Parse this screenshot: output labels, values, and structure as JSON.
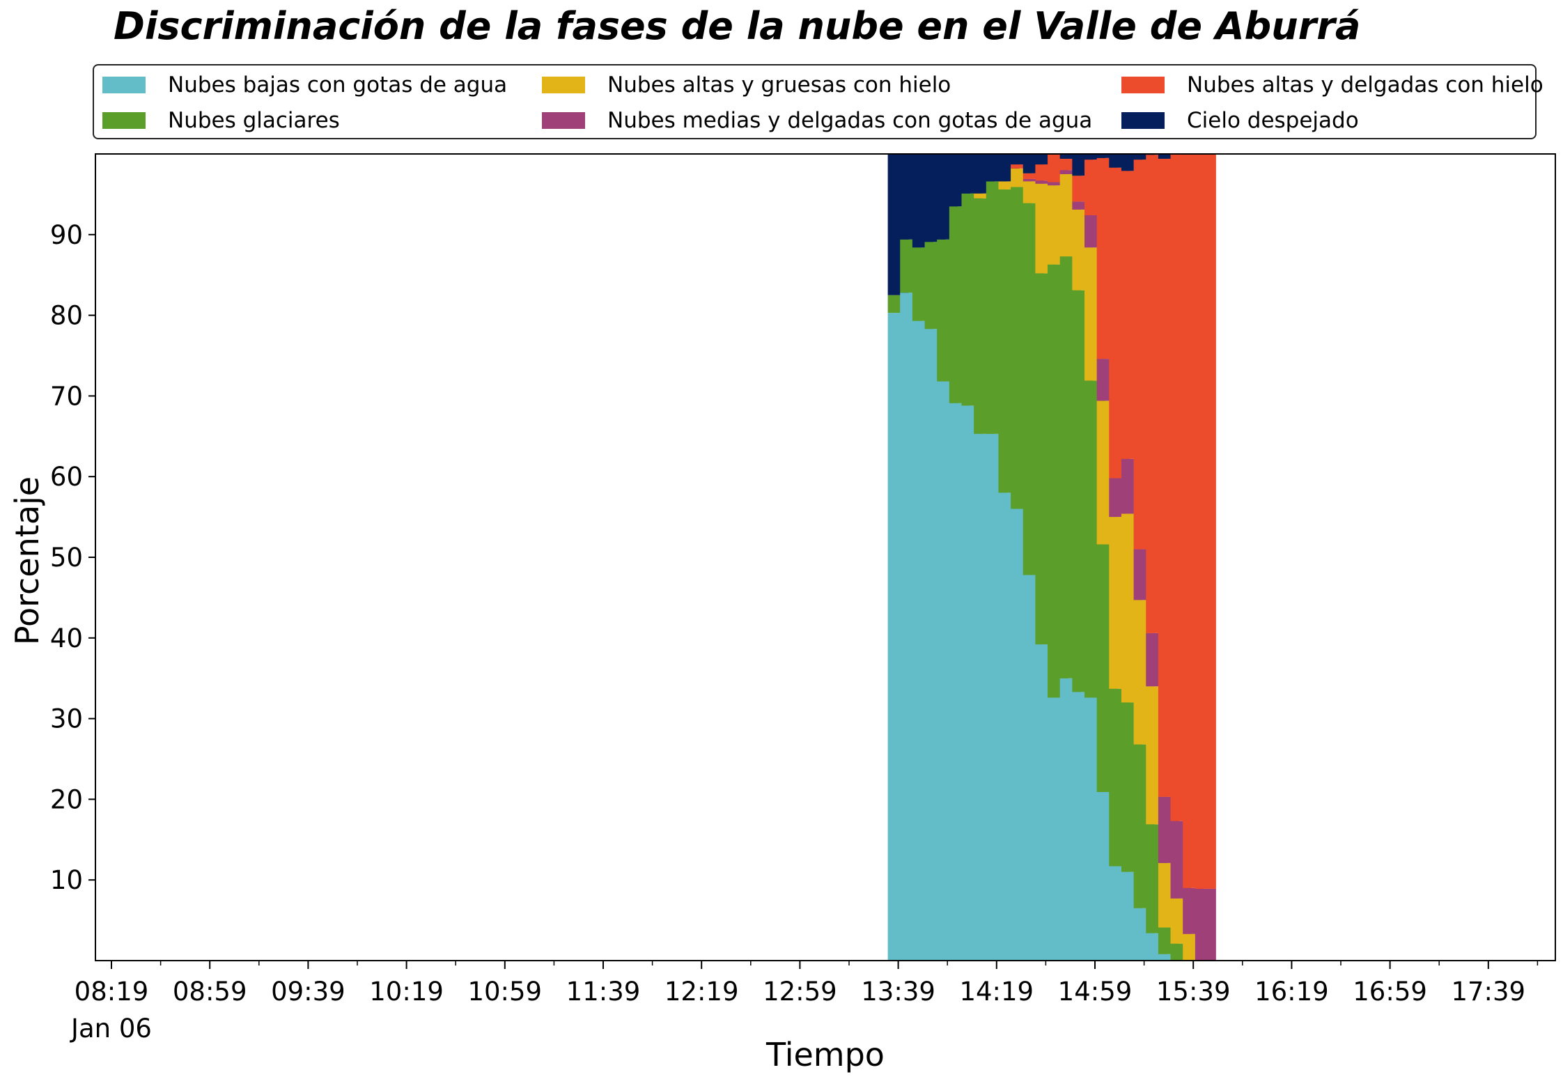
{
  "chart_data": {
    "type": "bar",
    "stacked": true,
    "title": "Discriminación de la fases de la nube en el Valle de Aburrá",
    "xlabel": "Tiempo",
    "ylabel": "Porcentaje",
    "ylim": [
      0,
      100
    ],
    "yticks": [
      10,
      20,
      30,
      40,
      50,
      60,
      70,
      80,
      90
    ],
    "xticks": [
      "08:19",
      "08:59",
      "09:39",
      "10:19",
      "10:59",
      "11:39",
      "12:19",
      "12:59",
      "13:39",
      "14:19",
      "14:59",
      "15:39",
      "16:19",
      "16:59",
      "17:39"
    ],
    "x_date_label": "Jan 06",
    "legend_placement": "top, outside plot, 3 columns",
    "grid": false,
    "x": [
      "13:39",
      "13:44",
      "13:49",
      "13:54",
      "13:59",
      "14:04",
      "14:09",
      "14:14",
      "14:19",
      "14:24",
      "14:29",
      "14:34",
      "14:39",
      "14:44",
      "14:49",
      "14:54",
      "14:59",
      "15:04",
      "15:09",
      "15:14",
      "15:19",
      "15:24",
      "15:29",
      "15:34",
      "15:39",
      "15:44"
    ],
    "series": [
      {
        "name": "Nubes bajas con gotas de agua",
        "color": "#63BDC9",
        "values": [
          80.3,
          82.8,
          79.3,
          78.3,
          71.8,
          69.1,
          68.8,
          65.3,
          65.3,
          58.0,
          56.0,
          47.8,
          39.2,
          32.6,
          35.0,
          33.3,
          32.6,
          20.9,
          11.7,
          11.0,
          6.5,
          3.4,
          0.8,
          0,
          0,
          0
        ]
      },
      {
        "name": "Nubes glaciares",
        "color": "#5B9E2A",
        "values": [
          2.2,
          6.6,
          9.1,
          10.8,
          17.6,
          24.4,
          26.3,
          29.2,
          31.3,
          37.6,
          39.9,
          46.1,
          46.0,
          53.7,
          52.3,
          49.8,
          39.3,
          30.7,
          22.0,
          21.0,
          20.3,
          13.5,
          3.3,
          2.1,
          0,
          0
        ]
      },
      {
        "name": "Nubes altas y gruesas con hielo",
        "color": "#E2B417",
        "values": [
          0,
          0,
          0,
          0,
          0,
          0,
          0,
          0.6,
          0,
          1.0,
          2.3,
          2.7,
          11.1,
          9.8,
          10.2,
          10.0,
          16.5,
          17.8,
          21.3,
          23.4,
          17.9,
          17.1,
          8.0,
          5.6,
          3.3,
          0
        ]
      },
      {
        "name": "Nubes medias y delgadas con gotas de agua",
        "color": "#A04078",
        "values": [
          0,
          0,
          0,
          0,
          0,
          0,
          0,
          0,
          0,
          0,
          0,
          0.3,
          0.4,
          0.4,
          0.5,
          1.0,
          4.0,
          5.2,
          4.8,
          6.8,
          6.3,
          6.6,
          8.2,
          9.6,
          5.7,
          8.9
        ]
      },
      {
        "name": "Nubes altas y delgadas con hielo",
        "color": "#EC4B2C",
        "values": [
          0,
          0,
          0,
          0,
          0,
          0,
          0,
          0,
          0,
          0,
          0.5,
          0.7,
          2.0,
          3.5,
          1.4,
          3.2,
          6.9,
          24.9,
          38.5,
          35.7,
          48.3,
          59.3,
          79.1,
          82.7,
          91.0,
          91.1
        ]
      },
      {
        "name": "Cielo despejado",
        "color": "#041F5C",
        "values": [
          17.5,
          10.6,
          11.6,
          10.9,
          10.6,
          6.5,
          4.9,
          4.9,
          3.4,
          3.4,
          1.3,
          2.4,
          1.3,
          0,
          0.6,
          2.7,
          0.7,
          0.5,
          1.7,
          2.1,
          0.7,
          0.5,
          0.6,
          0,
          0,
          0
        ]
      }
    ]
  }
}
